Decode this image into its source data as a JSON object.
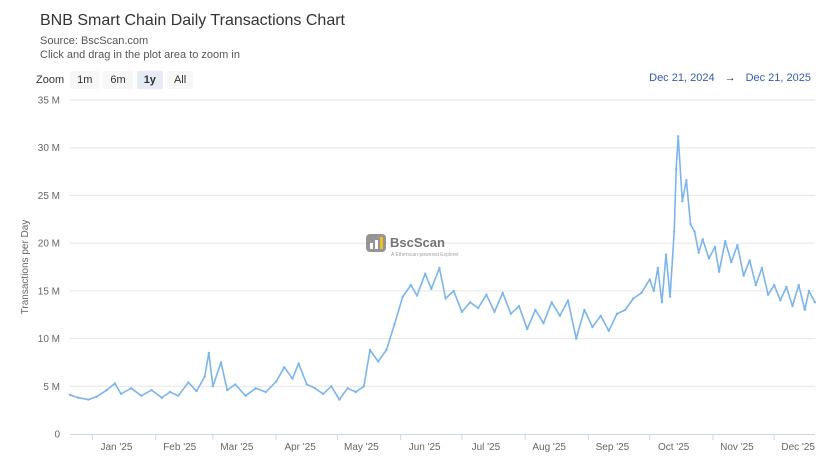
{
  "title": "BNB Smart Chain Daily Transactions Chart",
  "subtitle_source": "Source: BscScan.com",
  "subtitle_hint": "Click and drag in the plot area to zoom in",
  "zoom": {
    "label": "Zoom",
    "buttons": [
      "1m",
      "6m",
      "1y",
      "All"
    ],
    "active": "1y"
  },
  "range": {
    "from": "Dec 21, 2024",
    "arrow": "→",
    "to": "Dec 21, 2025"
  },
  "watermark": {
    "name": "BscScan",
    "tagline": "A Etherscan-powered Explorer"
  },
  "colors": {
    "line": "#7cb5ec",
    "grid": "#e6e6e6",
    "range_text": "#335cad"
  },
  "chart_data": {
    "type": "line",
    "ylabel": "Transactions per Day",
    "xlabel": "",
    "ylim": [
      0,
      35000000
    ],
    "yticks": [
      {
        "v": 0,
        "label": "0"
      },
      {
        "v": 5000000,
        "label": "5 M"
      },
      {
        "v": 10000000,
        "label": "10 M"
      },
      {
        "v": 15000000,
        "label": "15 M"
      },
      {
        "v": 20000000,
        "label": "20 M"
      },
      {
        "v": 25000000,
        "label": "25 M"
      },
      {
        "v": 30000000,
        "label": "30 M"
      },
      {
        "v": 35000000,
        "label": "35 M"
      }
    ],
    "xlim": [
      "2024-12-21",
      "2025-12-21"
    ],
    "xticks": [
      {
        "date": "2025-01-01",
        "label": "Jan '25"
      },
      {
        "date": "2025-02-01",
        "label": "Feb '25"
      },
      {
        "date": "2025-03-01",
        "label": "Mar '25"
      },
      {
        "date": "2025-04-01",
        "label": "Apr '25"
      },
      {
        "date": "2025-05-01",
        "label": "May '25"
      },
      {
        "date": "2025-06-01",
        "label": "Jun '25"
      },
      {
        "date": "2025-07-01",
        "label": "Jul '25"
      },
      {
        "date": "2025-08-01",
        "label": "Aug '25"
      },
      {
        "date": "2025-09-01",
        "label": "Sep '25"
      },
      {
        "date": "2025-10-01",
        "label": "Oct '25"
      },
      {
        "date": "2025-11-01",
        "label": "Nov '25"
      },
      {
        "date": "2025-12-01",
        "label": "Dec '25"
      }
    ],
    "series": [
      {
        "points": [
          [
            "2024-12-21",
            4.1
          ],
          [
            "2024-12-25",
            3.8
          ],
          [
            "2024-12-30",
            3.6
          ],
          [
            "2025-01-03",
            3.9
          ],
          [
            "2025-01-08",
            4.6
          ],
          [
            "2025-01-12",
            5.3
          ],
          [
            "2025-01-15",
            4.2
          ],
          [
            "2025-01-20",
            4.8
          ],
          [
            "2025-01-25",
            4.0
          ],
          [
            "2025-01-30",
            4.6
          ],
          [
            "2025-02-04",
            3.8
          ],
          [
            "2025-02-08",
            4.4
          ],
          [
            "2025-02-12",
            4.0
          ],
          [
            "2025-02-17",
            5.4
          ],
          [
            "2025-02-21",
            4.5
          ],
          [
            "2025-02-25",
            6.0
          ],
          [
            "2025-02-27",
            8.5
          ],
          [
            "2025-03-01",
            5.0
          ],
          [
            "2025-03-05",
            7.5
          ],
          [
            "2025-03-08",
            4.6
          ],
          [
            "2025-03-12",
            5.2
          ],
          [
            "2025-03-17",
            4.0
          ],
          [
            "2025-03-22",
            4.8
          ],
          [
            "2025-03-27",
            4.4
          ],
          [
            "2025-04-01",
            5.5
          ],
          [
            "2025-04-05",
            7.0
          ],
          [
            "2025-04-09",
            5.8
          ],
          [
            "2025-04-12",
            7.4
          ],
          [
            "2025-04-16",
            5.2
          ],
          [
            "2025-04-20",
            4.8
          ],
          [
            "2025-04-24",
            4.2
          ],
          [
            "2025-04-28",
            5.0
          ],
          [
            "2025-05-02",
            3.6
          ],
          [
            "2025-05-06",
            4.8
          ],
          [
            "2025-05-10",
            4.4
          ],
          [
            "2025-05-14",
            5.0
          ],
          [
            "2025-05-17",
            8.8
          ],
          [
            "2025-05-21",
            7.6
          ],
          [
            "2025-05-25",
            8.8
          ],
          [
            "2025-05-29",
            11.5
          ],
          [
            "2025-06-02",
            14.4
          ],
          [
            "2025-06-06",
            15.6
          ],
          [
            "2025-06-09",
            14.5
          ],
          [
            "2025-06-13",
            16.8
          ],
          [
            "2025-06-16",
            15.2
          ],
          [
            "2025-06-20",
            17.4
          ],
          [
            "2025-06-23",
            14.2
          ],
          [
            "2025-06-27",
            15.0
          ],
          [
            "2025-07-01",
            12.8
          ],
          [
            "2025-07-05",
            13.8
          ],
          [
            "2025-07-09",
            13.2
          ],
          [
            "2025-07-13",
            14.6
          ],
          [
            "2025-07-17",
            12.8
          ],
          [
            "2025-07-21",
            14.8
          ],
          [
            "2025-07-25",
            12.6
          ],
          [
            "2025-07-29",
            13.4
          ],
          [
            "2025-08-02",
            11.0
          ],
          [
            "2025-08-06",
            13.0
          ],
          [
            "2025-08-10",
            11.6
          ],
          [
            "2025-08-14",
            13.8
          ],
          [
            "2025-08-18",
            12.4
          ],
          [
            "2025-08-22",
            14.0
          ],
          [
            "2025-08-26",
            10.0
          ],
          [
            "2025-08-30",
            13.0
          ],
          [
            "2025-09-03",
            11.2
          ],
          [
            "2025-09-07",
            12.4
          ],
          [
            "2025-09-11",
            10.8
          ],
          [
            "2025-09-15",
            12.6
          ],
          [
            "2025-09-19",
            13.0
          ],
          [
            "2025-09-23",
            14.2
          ],
          [
            "2025-09-27",
            14.8
          ],
          [
            "2025-10-01",
            16.2
          ],
          [
            "2025-10-03",
            15.0
          ],
          [
            "2025-10-05",
            17.4
          ],
          [
            "2025-10-07",
            13.8
          ],
          [
            "2025-10-09",
            18.8
          ],
          [
            "2025-10-11",
            14.4
          ],
          [
            "2025-10-13",
            21.2
          ],
          [
            "2025-10-14",
            27.8
          ],
          [
            "2025-10-15",
            31.2
          ],
          [
            "2025-10-17",
            24.4
          ],
          [
            "2025-10-19",
            26.6
          ],
          [
            "2025-10-21",
            22.0
          ],
          [
            "2025-10-23",
            21.2
          ],
          [
            "2025-10-25",
            19.0
          ],
          [
            "2025-10-27",
            20.4
          ],
          [
            "2025-10-30",
            18.4
          ],
          [
            "2025-11-02",
            19.6
          ],
          [
            "2025-11-04",
            17.0
          ],
          [
            "2025-11-07",
            20.2
          ],
          [
            "2025-11-10",
            18.0
          ],
          [
            "2025-11-13",
            19.8
          ],
          [
            "2025-11-16",
            16.6
          ],
          [
            "2025-11-19",
            18.2
          ],
          [
            "2025-11-22",
            15.6
          ],
          [
            "2025-11-25",
            17.4
          ],
          [
            "2025-11-28",
            14.6
          ],
          [
            "2025-12-01",
            15.6
          ],
          [
            "2025-12-04",
            14.0
          ],
          [
            "2025-12-07",
            15.4
          ],
          [
            "2025-12-10",
            13.4
          ],
          [
            "2025-12-13",
            15.6
          ],
          [
            "2025-12-16",
            13.0
          ],
          [
            "2025-12-18",
            15.0
          ],
          [
            "2025-12-21",
            13.8
          ]
        ]
      }
    ]
  }
}
